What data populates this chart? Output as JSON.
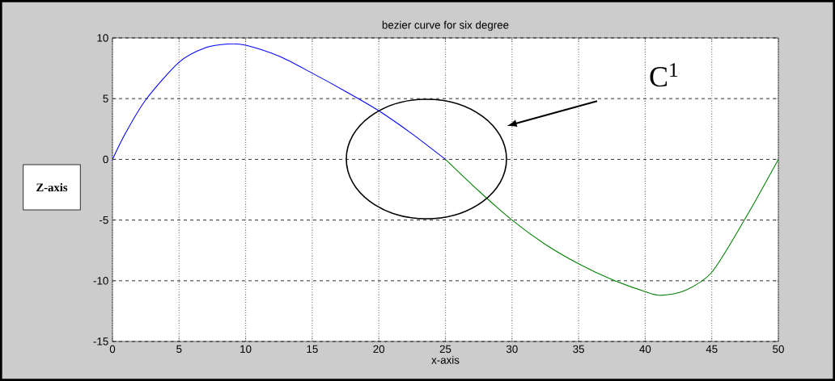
{
  "chart_data": {
    "type": "line",
    "title": "bezier curve for six degree",
    "xlabel": "x-axis",
    "ylabel": "Z-axis",
    "annotations": [
      "C$^{1}$"
    ],
    "series": [
      {
        "color": "#0000ff",
        "x": [
          0,
          1,
          2.5,
          5,
          7,
          8.7,
          10,
          12.5,
          15,
          17.5,
          20,
          22.5,
          25
        ],
        "values": [
          0,
          2.2,
          4.9,
          8.0,
          9.2,
          9.5,
          9.4,
          8.5,
          7.1,
          5.6,
          4.0,
          2.1,
          0
        ]
      },
      {
        "color": "#008000",
        "x": [
          25,
          27.5,
          30,
          32.5,
          35,
          37.5,
          40,
          41.2,
          43,
          45,
          47.5,
          50
        ],
        "values": [
          0,
          -2.6,
          -5.0,
          -7.0,
          -8.6,
          -9.9,
          -10.9,
          -11.2,
          -10.8,
          -9.3,
          -4.9,
          0
        ]
      }
    ],
    "xlim": [
      0,
      50
    ],
    "ylim": [
      -15,
      10
    ],
    "xticks": [
      0,
      5,
      10,
      15,
      20,
      25,
      30,
      35,
      40,
      45,
      50
    ],
    "yticks": [
      -15,
      -10,
      -5,
      0,
      5,
      10
    ],
    "grid": true,
    "marker": "none",
    "line_style": "solid"
  }
}
